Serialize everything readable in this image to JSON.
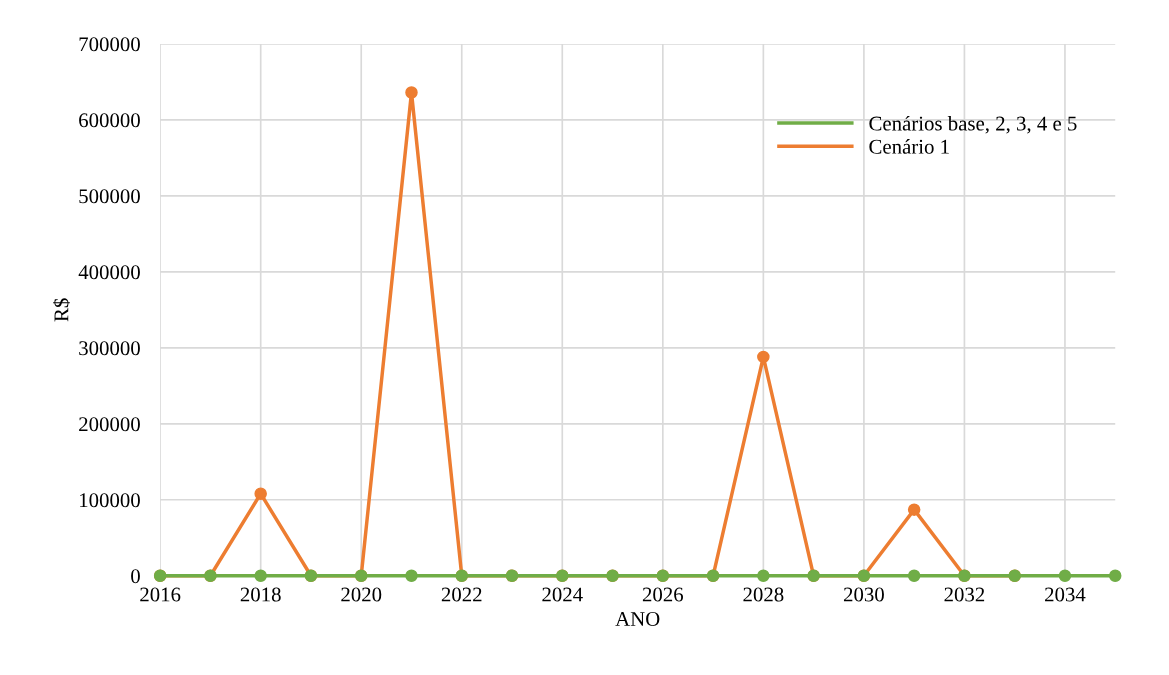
{
  "chart_data": {
    "type": "line",
    "xlabel": "ANO",
    "ylabel": "R$",
    "x": [
      2016,
      2017,
      2018,
      2019,
      2020,
      2021,
      2022,
      2023,
      2024,
      2025,
      2026,
      2027,
      2028,
      2029,
      2030,
      2031,
      2032,
      2033,
      2034,
      2035
    ],
    "series": [
      {
        "name": "Cenários base, 2, 3, 4 e 5",
        "color": "#70ad47",
        "values": [
          0,
          0,
          0,
          0,
          0,
          0,
          0,
          0,
          0,
          0,
          0,
          0,
          0,
          0,
          0,
          0,
          0,
          0,
          0,
          0
        ]
      },
      {
        "name": "Cenário 1",
        "color": "#ed7d31",
        "values": [
          0,
          0,
          108000,
          0,
          0,
          636000,
          0,
          0,
          0,
          0,
          0,
          0,
          288000,
          0,
          0,
          87000,
          0,
          0,
          null,
          null
        ]
      }
    ],
    "xlim": [
      2016,
      2035
    ],
    "xticks": [
      2016,
      2018,
      2020,
      2022,
      2024,
      2026,
      2028,
      2030,
      2032,
      2034
    ],
    "ylim": [
      0,
      700000
    ],
    "yticks": [
      0,
      100000,
      200000,
      300000,
      400000,
      500000,
      600000,
      700000
    ],
    "grid": true,
    "legend": "top right",
    "marker": "circle",
    "line_style": "solid"
  }
}
